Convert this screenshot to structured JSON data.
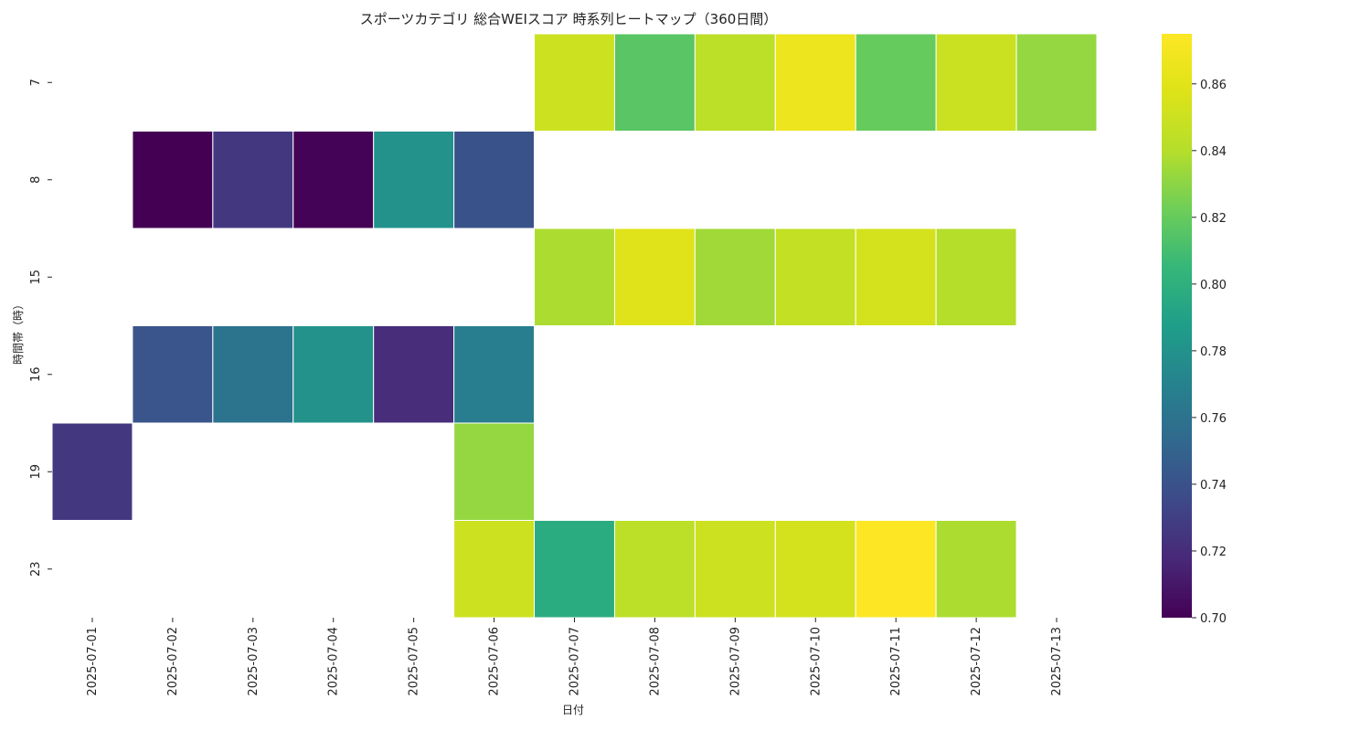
{
  "chart_data": {
    "type": "heatmap",
    "title": "スポーツカテゴリ 総合WEIスコア 時系列ヒートマップ（360日間）",
    "xlabel": "日付",
    "ylabel": "時間帯（時）",
    "x_categories": [
      "2025-07-01",
      "2025-07-02",
      "2025-07-03",
      "2025-07-04",
      "2025-07-05",
      "2025-07-06",
      "2025-07-07",
      "2025-07-08",
      "2025-07-09",
      "2025-07-10",
      "2025-07-11",
      "2025-07-12",
      "2025-07-13"
    ],
    "y_categories": [
      "7",
      "8",
      "15",
      "16",
      "19",
      "23"
    ],
    "values": [
      [
        null,
        null,
        null,
        null,
        null,
        null,
        0.85,
        0.816,
        0.843,
        0.866,
        0.82,
        0.849,
        0.832
      ],
      [
        null,
        0.7,
        0.726,
        0.701,
        0.78,
        0.74,
        null,
        null,
        null,
        null,
        null,
        null,
        null
      ],
      [
        null,
        null,
        null,
        null,
        null,
        null,
        0.838,
        0.859,
        0.835,
        0.846,
        0.853,
        0.84,
        null
      ],
      [
        null,
        0.742,
        0.76,
        0.78,
        0.72,
        0.767,
        null,
        null,
        null,
        null,
        null,
        null,
        null
      ],
      [
        0.726,
        null,
        null,
        null,
        null,
        0.832,
        null,
        null,
        null,
        null,
        null,
        null,
        null
      ],
      [
        null,
        null,
        null,
        null,
        null,
        0.85,
        0.797,
        0.843,
        0.85,
        0.853,
        0.875,
        0.838,
        null
      ]
    ],
    "colormap": "viridis",
    "vmin": 0.7,
    "vmax": 0.875,
    "colorbar_ticks": [
      "0.70",
      "0.72",
      "0.74",
      "0.76",
      "0.78",
      "0.80",
      "0.82",
      "0.84",
      "0.86"
    ],
    "grid": false,
    "cell_border_color": "#ffffff"
  }
}
